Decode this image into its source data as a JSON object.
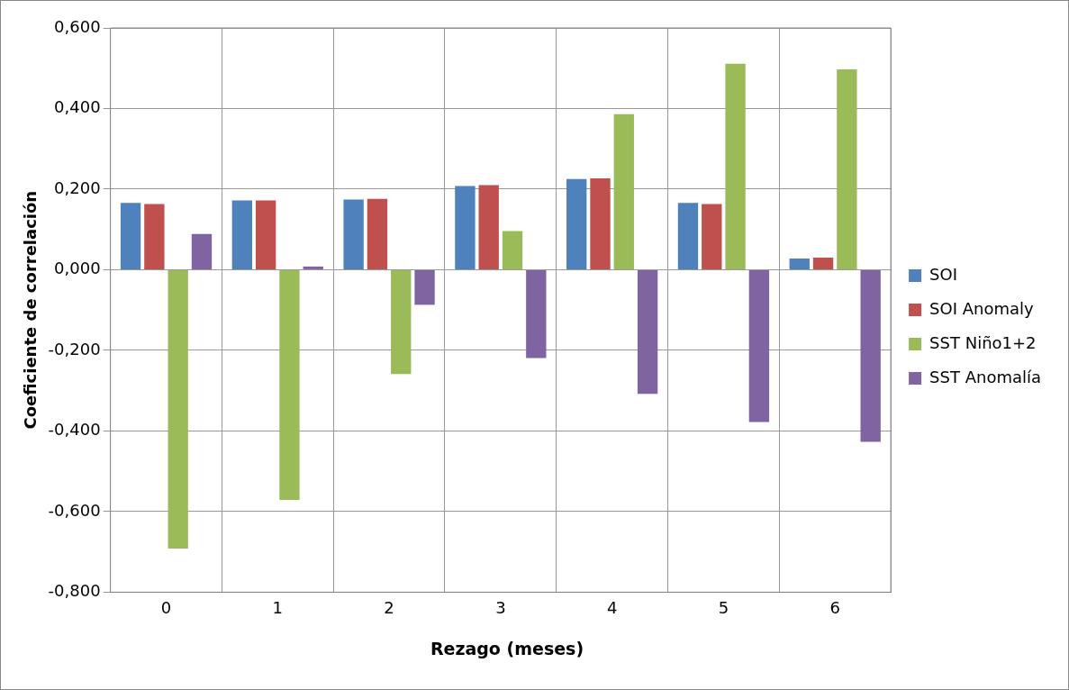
{
  "chart_data": {
    "type": "bar",
    "xlabel": "Rezago (meses)",
    "ylabel": "Coeficiente de correlación",
    "categories": [
      "0",
      "1",
      "2",
      "3",
      "4",
      "5",
      "6"
    ],
    "series": [
      {
        "name": "SOI",
        "color": "#4f81bd",
        "values": [
          0.166,
          0.172,
          0.174,
          0.208,
          0.225,
          0.166,
          0.028
        ]
      },
      {
        "name": "SOI Anomaly",
        "color": "#c0504d",
        "values": [
          0.163,
          0.172,
          0.176,
          0.21,
          0.227,
          0.163,
          0.03
        ]
      },
      {
        "name": "SST Niño1+2",
        "color": "#9bbb59",
        "values": [
          -0.692,
          -0.571,
          -0.259,
          0.096,
          0.386,
          0.511,
          0.497
        ]
      },
      {
        "name": "SST Anomalía",
        "color": "#8064a2",
        "values": [
          0.089,
          0.008,
          -0.087,
          -0.219,
          -0.308,
          -0.378,
          -0.427
        ]
      }
    ],
    "ylim": [
      -0.8,
      0.6
    ],
    "yticks": [
      {
        "value": -0.8,
        "label": "-0,800"
      },
      {
        "value": -0.6,
        "label": "-0,600"
      },
      {
        "value": -0.4,
        "label": "-0,400"
      },
      {
        "value": -0.2,
        "label": "-0,200"
      },
      {
        "value": 0,
        "label": "0,000"
      },
      {
        "value": 0.2,
        "label": "0,200"
      },
      {
        "value": 0.4,
        "label": "0,400"
      },
      {
        "value": 0.6,
        "label": "0,600"
      }
    ],
    "grid": true,
    "legend": "right"
  }
}
